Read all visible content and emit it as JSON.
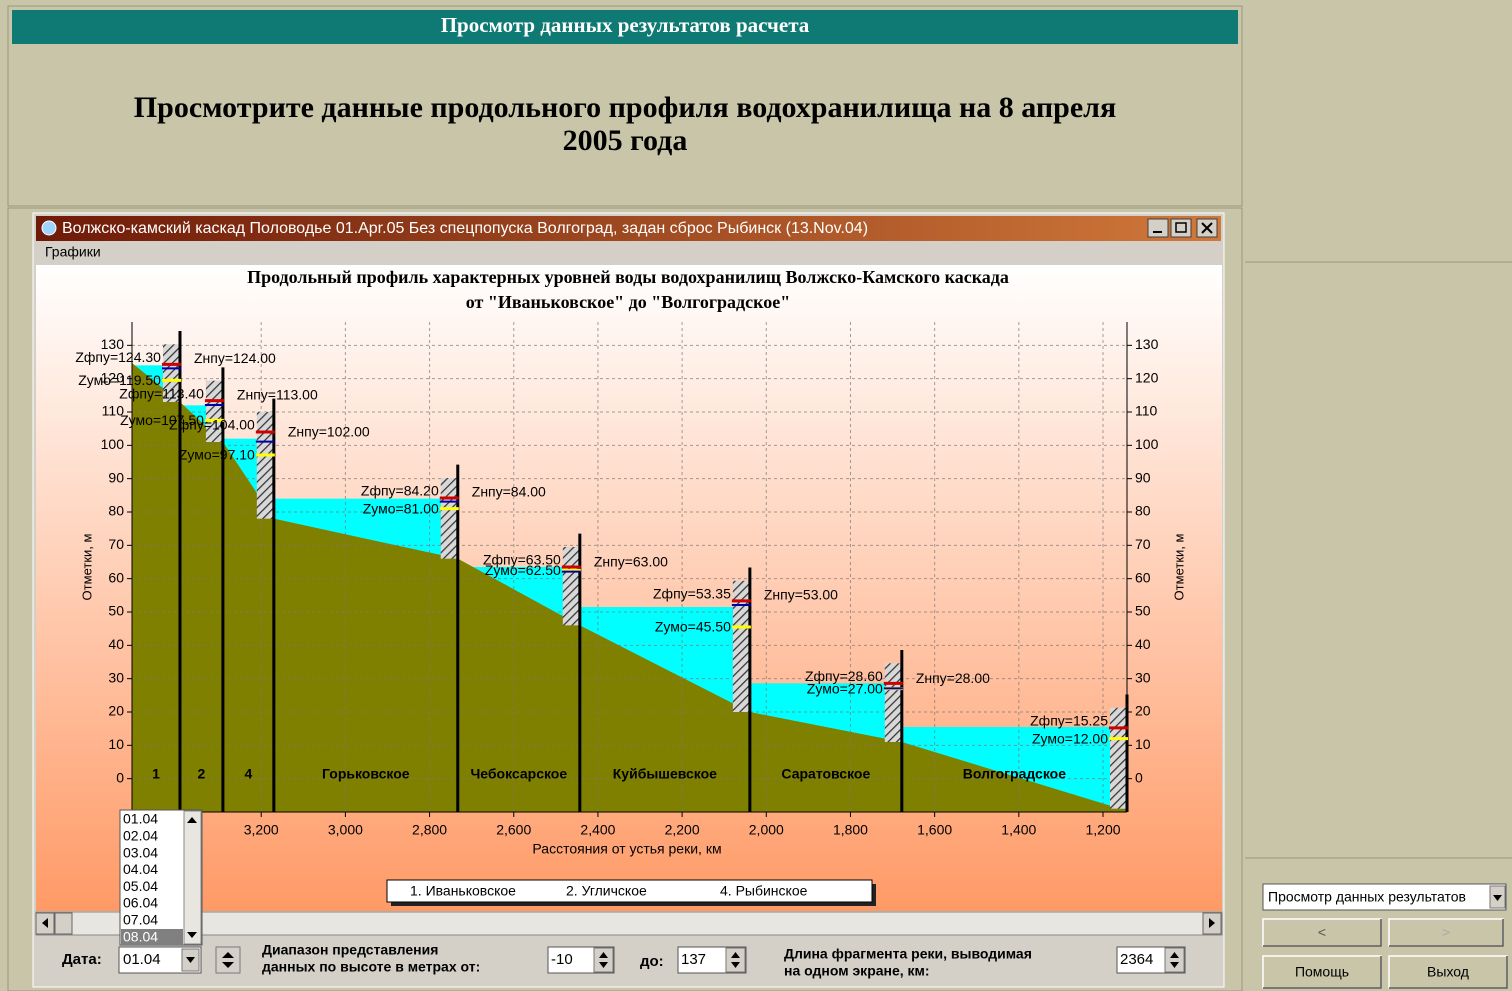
{
  "header": {
    "title": "Просмотр данных результатов расчета",
    "prompt": [
      "Просмотрите данные продольного профиля водохранилища на 8 апреля",
      "2005 года"
    ]
  },
  "window": {
    "title": "Волжско-камский каскад Половодье 01.Apr.05 Без спецпопуска Волгоград, задан сброс Рыбинск (13.Nov.04)",
    "menu": "Графики"
  },
  "chart_data": {
    "type": "profile",
    "title": [
      "Продольный профиль характерных уровней воды водохранилищ Волжско-Камского каскада",
      "от \"Иваньковское\" до \"Волгоградское\""
    ],
    "xlabel": "Расстояния от устья реки, км",
    "ylabel": "Отметки, м",
    "xlim": [
      3507,
      1143
    ],
    "xticks": [
      {
        "value": 3200,
        "label": "3,200"
      },
      {
        "value": 3000,
        "label": "3,000"
      },
      {
        "value": 2800,
        "label": "2,800"
      },
      {
        "value": 2600,
        "label": "2,600"
      },
      {
        "value": 2400,
        "label": "2,400"
      },
      {
        "value": 2200,
        "label": "2,200"
      },
      {
        "value": 2000,
        "label": "2,000"
      },
      {
        "value": 1800,
        "label": "1,800"
      },
      {
        "value": 1600,
        "label": "1,600"
      },
      {
        "value": 1400,
        "label": "1,400"
      },
      {
        "value": 1200,
        "label": "1,200"
      }
    ],
    "ylim": [
      -10,
      137
    ],
    "yticks": [
      0,
      10,
      20,
      30,
      40,
      50,
      60,
      70,
      80,
      90,
      100,
      110,
      120,
      130
    ],
    "grid": true,
    "bed": {
      "color": "#808000",
      "x": [
        3507,
        3393,
        3291,
        3170,
        2733,
        2443,
        2039,
        1678,
        1160,
        1143
      ],
      "values": [
        124.7,
        113,
        101,
        78,
        66,
        46,
        20,
        11,
        -9,
        -9
      ]
    },
    "water_color": "#00ffff",
    "reservoirs": [
      {
        "label": "1",
        "dam_km": 3393,
        "level": 124,
        "zfpu": 124.3,
        "znpu": 124,
        "zumo": 119.5,
        "labels": {
          "zfpu": "Zфпу=124.30",
          "znpu": "Zнпу=124.00",
          "zumo": "Zумо=119.50"
        }
      },
      {
        "label": "2",
        "dam_km": 3291,
        "level": 112,
        "zfpu": 113.4,
        "znpu": 113,
        "zumo": 107.5,
        "labels": {
          "zfpu": "Zфпу=113.40",
          "znpu": "Zнпу=113.00",
          "zumo": "Zумо=107.50"
        }
      },
      {
        "label": "4",
        "dam_km": 3170,
        "level": 102,
        "zfpu": 104,
        "znpu": 102,
        "zumo": 97.1,
        "labels": {
          "zfpu": "Zфпу=104.00",
          "znpu": "Zнпу=102.00",
          "zumo": "Zумо=97.10"
        }
      },
      {
        "label": "Горьковское",
        "dam_km": 2733,
        "level": 84,
        "zfpu": 84.2,
        "znpu": 84,
        "zumo": 81,
        "labels": {
          "zfpu": "Zфпу=84.20",
          "znpu": "Zнпу=84.00",
          "zumo": "Zумо=81.00"
        }
      },
      {
        "label": "Чебоксарское",
        "dam_km": 2443,
        "level": 63.5,
        "zfpu": 63.5,
        "znpu": 63,
        "zumo": 62.5,
        "labels": {
          "zfpu": "Zфпу=63.50",
          "znpu": "Zнпу=63.00",
          "zumo": "Zумо=62.50"
        }
      },
      {
        "label": "Куйбышевское",
        "dam_km": 2039,
        "level": 51.5,
        "zfpu": 53.35,
        "znpu": 53,
        "zumo": 45.5,
        "labels": {
          "zfpu": "Zфпу=53.35",
          "znpu": "Zнпу=53.00",
          "zumo": "Zумо=45.50"
        }
      },
      {
        "label": "Саратовское",
        "dam_km": 1678,
        "level": 28.6,
        "zfpu": 28.6,
        "znpu": 28,
        "zumo": 27,
        "labels": {
          "zfpu": "Zфпу=28.60",
          "znpu": "Zнпу=28.00",
          "zumo": "Zумо=27.00"
        }
      },
      {
        "label": "Волгоградское",
        "dam_km": 1143,
        "level": 15.5,
        "zfpu": 15.25,
        "zumo": 12,
        "labels": {
          "zfpu": "Zфпу=15.25",
          "zumo": "Zумо=12.00"
        }
      }
    ],
    "legend": [
      "1. Иваньковское",
      "2. Угличское",
      "4. Рыбинское"
    ]
  },
  "date_list": {
    "items": [
      "01.04",
      "02.04",
      "03.04",
      "04.04",
      "05.04",
      "06.04",
      "07.04",
      "08.04"
    ],
    "selected": 7
  },
  "controls": {
    "date_label": "Дата:",
    "date": "01.04",
    "range_label": [
      "Диапазон представления",
      "данных по высоте в метрах от:"
    ],
    "to_label": "до:",
    "length_label": [
      "Длина фрагмента реки, выводимая",
      "на одном экране, км:"
    ],
    "fragment_length": 2364
  },
  "side": {
    "select": "Просмотр данных результатов",
    "prev": "<",
    "next": ">",
    "help": "Помощь",
    "exit": "Выход"
  }
}
